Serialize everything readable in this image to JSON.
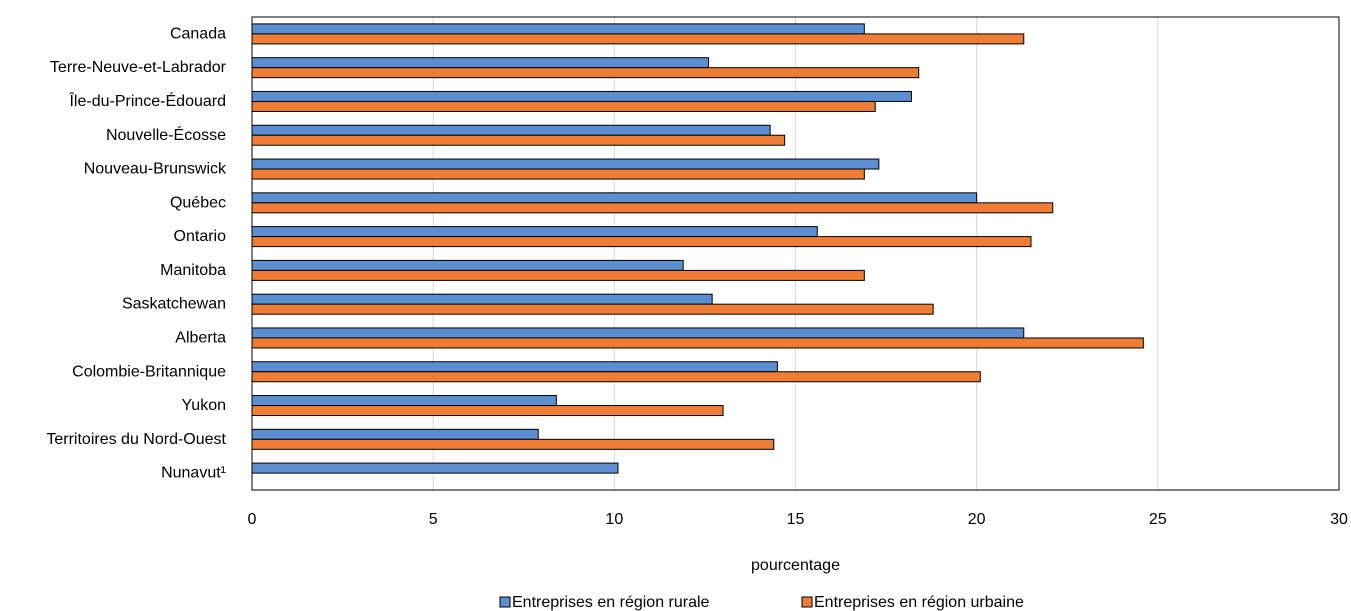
{
  "chart_data": {
    "type": "bar",
    "orientation": "horizontal",
    "categories": [
      "Canada",
      "Terre-Neuve-et-Labrador",
      "Île-du-Prince-Édouard",
      "Nouvelle-Écosse",
      "Nouveau-Brunswick",
      "Québec",
      "Ontario",
      "Manitoba",
      "Saskatchewan",
      "Alberta",
      "Colombie-Britannique",
      "Yukon",
      "Territoires du Nord-Ouest",
      "Nunavut¹"
    ],
    "series": [
      {
        "name": "Entreprises en région rurale",
        "color": "#5b8fd1",
        "values": [
          16.9,
          12.6,
          18.2,
          14.3,
          17.3,
          20.0,
          15.6,
          11.9,
          12.7,
          21.3,
          14.5,
          8.4,
          7.9,
          10.1
        ]
      },
      {
        "name": "Entreprises en région urbaine",
        "color": "#ef7d35",
        "values": [
          21.3,
          18.4,
          17.2,
          14.7,
          16.9,
          22.1,
          21.5,
          16.9,
          18.8,
          24.6,
          20.1,
          13.0,
          14.4,
          null
        ]
      }
    ],
    "xlabel": "pourcentage",
    "xlim": [
      0,
      30
    ],
    "xticks": [
      0,
      5,
      10,
      15,
      20,
      25,
      30
    ],
    "grid": true,
    "legend_position": "bottom"
  }
}
